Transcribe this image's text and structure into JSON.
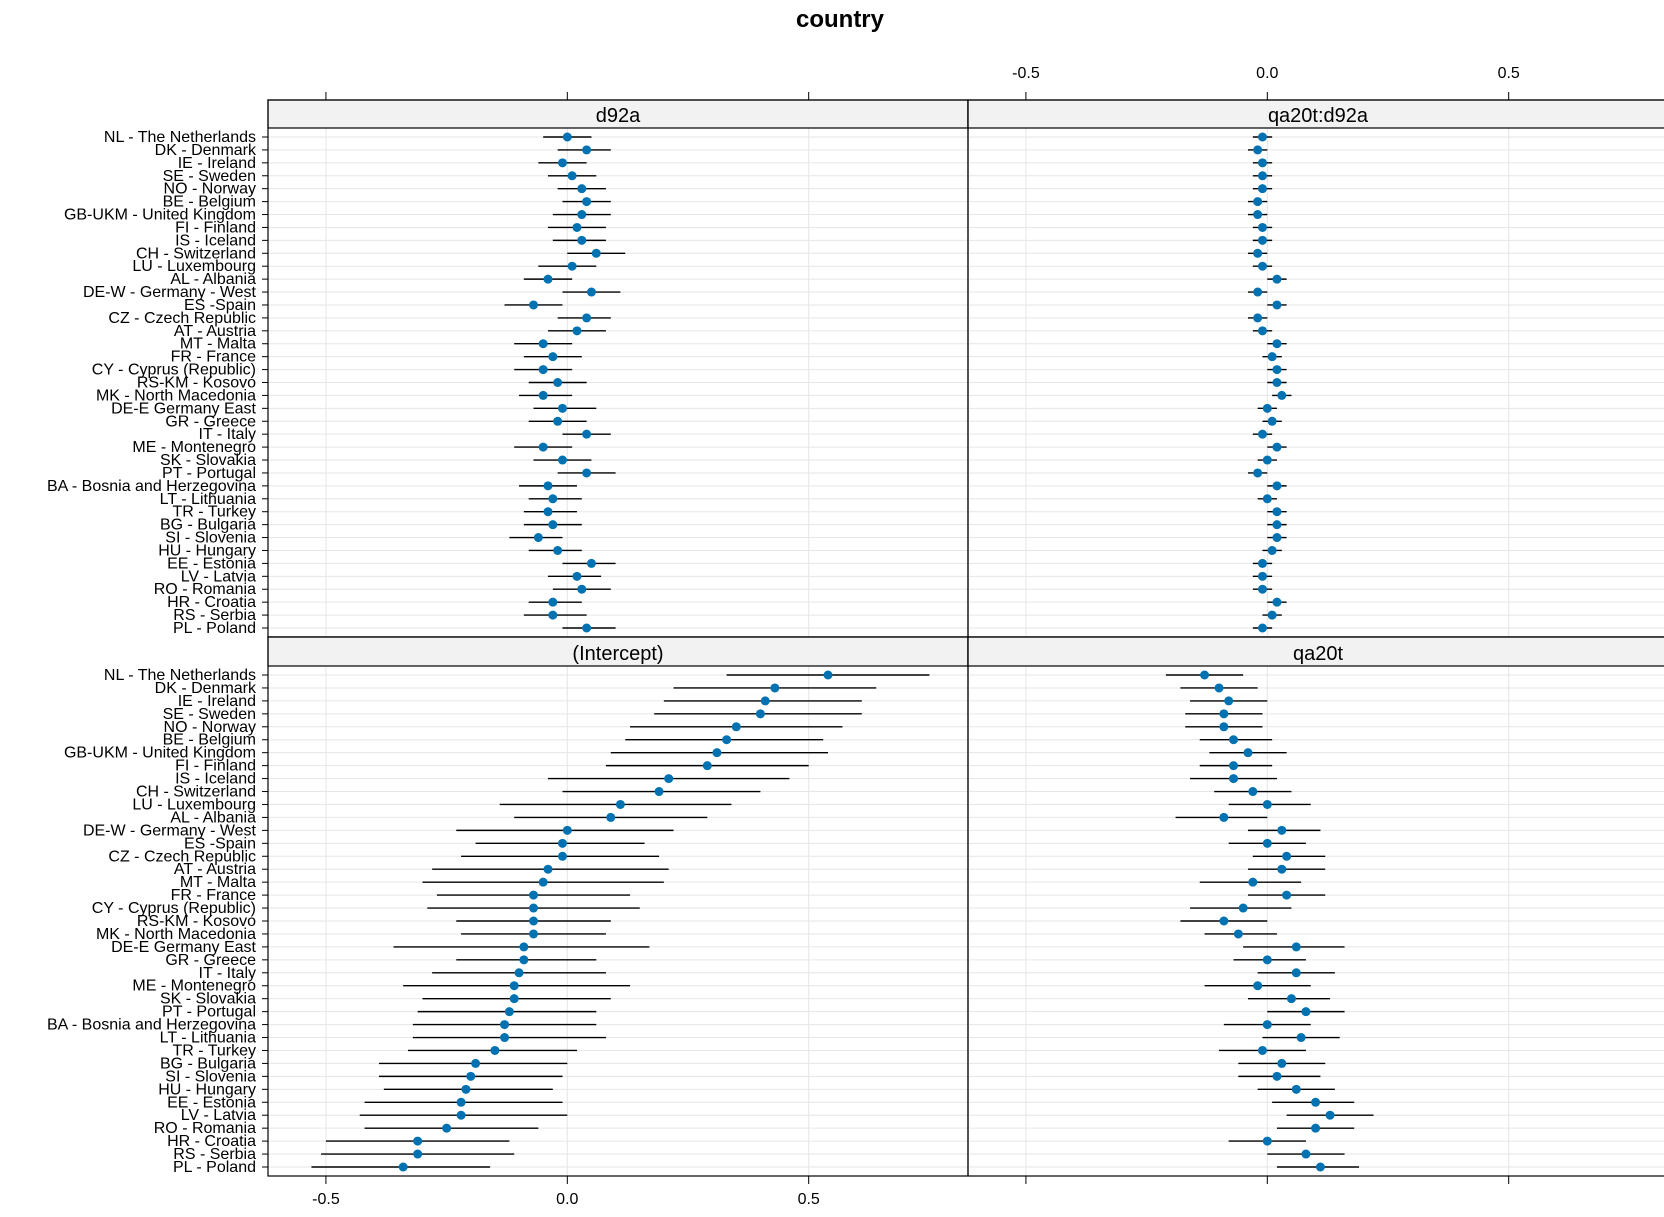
{
  "chart_data": {
    "type": "dotplot",
    "title": "country",
    "xlim": [
      -0.62,
      0.83
    ],
    "xticks": [
      -0.5,
      0.0,
      0.5
    ],
    "xtick_labels": [
      "-0.5",
      "0.0",
      "0.5"
    ],
    "grid": true,
    "point_color": "#0072B2",
    "countries": [
      "NL - The Netherlands",
      "DK - Denmark",
      "IE - Ireland",
      "SE - Sweden",
      "NO - Norway",
      "BE - Belgium",
      "GB-UKM - United Kingdom",
      "FI - Finland",
      "IS - Iceland",
      "CH - Switzerland",
      "LU - Luxembourg",
      "AL - Albania",
      "DE-W - Germany - West",
      "ES -Spain",
      "CZ - Czech Republic",
      "AT - Austria",
      "MT - Malta",
      "FR - France",
      "CY - Cyprus (Republic)",
      "RS-KM - Kosovo",
      "MK - North Macedonia",
      "DE-E Germany East",
      "GR - Greece",
      "IT - Italy",
      "ME - Montenegro",
      "SK - Slovakia",
      "PT - Portugal",
      "BA - Bosnia and Herzegovina",
      "LT - Lithuania",
      "TR - Turkey",
      "BG - Bulgaria",
      "SI - Slovenia",
      "HU - Hungary",
      "EE - Estonia",
      "LV - Latvia",
      "RO - Romania",
      "HR - Croatia",
      "RS - Serbia",
      "PL - Poland"
    ],
    "panels": [
      {
        "name": "d92a",
        "position": "top-left",
        "values": [
          0.0,
          0.04,
          -0.01,
          0.01,
          0.03,
          0.04,
          0.03,
          0.02,
          0.03,
          0.06,
          0.01,
          -0.04,
          0.05,
          -0.07,
          0.04,
          0.02,
          -0.05,
          -0.03,
          -0.05,
          -0.02,
          -0.05,
          -0.01,
          -0.02,
          0.04,
          -0.05,
          -0.01,
          0.04,
          -0.04,
          -0.03,
          -0.04,
          -0.03,
          -0.06,
          -0.02,
          0.05,
          0.02,
          0.03,
          -0.03,
          -0.03,
          0.04
        ],
        "lower": [
          -0.05,
          -0.02,
          -0.06,
          -0.04,
          -0.02,
          -0.01,
          -0.03,
          -0.04,
          -0.03,
          0.0,
          -0.06,
          -0.09,
          -0.01,
          -0.13,
          -0.02,
          -0.04,
          -0.11,
          -0.09,
          -0.11,
          -0.08,
          -0.1,
          -0.07,
          -0.08,
          -0.01,
          -0.11,
          -0.07,
          -0.02,
          -0.1,
          -0.08,
          -0.09,
          -0.09,
          -0.12,
          -0.08,
          -0.01,
          -0.04,
          -0.03,
          -0.08,
          -0.09,
          -0.01
        ],
        "upper": [
          0.05,
          0.09,
          0.04,
          0.06,
          0.08,
          0.09,
          0.09,
          0.08,
          0.08,
          0.12,
          0.06,
          0.01,
          0.11,
          -0.01,
          0.09,
          0.08,
          0.01,
          0.03,
          0.01,
          0.04,
          0.01,
          0.06,
          0.04,
          0.09,
          0.01,
          0.05,
          0.1,
          0.02,
          0.03,
          0.02,
          0.03,
          -0.01,
          0.03,
          0.1,
          0.07,
          0.09,
          0.03,
          0.04,
          0.1
        ]
      },
      {
        "name": "qa20t:d92a",
        "position": "top-right",
        "values": [
          -0.01,
          -0.02,
          -0.01,
          -0.01,
          -0.01,
          -0.02,
          -0.02,
          -0.01,
          -0.01,
          -0.02,
          -0.01,
          0.02,
          -0.02,
          0.02,
          -0.02,
          -0.01,
          0.02,
          0.01,
          0.02,
          0.02,
          0.03,
          0.0,
          0.01,
          -0.01,
          0.02,
          0.0,
          -0.02,
          0.02,
          0.0,
          0.02,
          0.02,
          0.02,
          0.01,
          -0.01,
          -0.01,
          -0.01,
          0.02,
          0.01,
          -0.01
        ],
        "lower": [
          -0.03,
          -0.04,
          -0.03,
          -0.03,
          -0.03,
          -0.04,
          -0.04,
          -0.03,
          -0.03,
          -0.04,
          -0.03,
          0.0,
          -0.04,
          0.0,
          -0.04,
          -0.03,
          0.0,
          -0.01,
          0.0,
          0.0,
          0.01,
          -0.02,
          -0.01,
          -0.03,
          0.0,
          -0.02,
          -0.04,
          0.0,
          -0.02,
          0.0,
          0.0,
          0.0,
          -0.01,
          -0.03,
          -0.03,
          -0.03,
          0.0,
          -0.01,
          -0.03
        ],
        "upper": [
          0.01,
          0.0,
          0.01,
          0.01,
          0.01,
          0.0,
          0.0,
          0.01,
          0.01,
          0.0,
          0.01,
          0.04,
          0.0,
          0.04,
          0.0,
          0.01,
          0.04,
          0.03,
          0.04,
          0.04,
          0.05,
          0.02,
          0.03,
          0.01,
          0.04,
          0.02,
          0.0,
          0.04,
          0.02,
          0.04,
          0.04,
          0.04,
          0.03,
          0.01,
          0.01,
          0.01,
          0.04,
          0.03,
          0.01
        ]
      },
      {
        "name": "(Intercept)",
        "position": "bottom-left",
        "values": [
          0.54,
          0.43,
          0.41,
          0.4,
          0.35,
          0.33,
          0.31,
          0.29,
          0.21,
          0.19,
          0.11,
          0.09,
          0.0,
          -0.01,
          -0.01,
          -0.04,
          -0.05,
          -0.07,
          -0.07,
          -0.07,
          -0.07,
          -0.09,
          -0.09,
          -0.1,
          -0.11,
          -0.11,
          -0.12,
          -0.13,
          -0.13,
          -0.15,
          -0.19,
          -0.2,
          -0.21,
          -0.22,
          -0.22,
          -0.25,
          -0.31,
          -0.31,
          -0.34
        ],
        "lower": [
          0.33,
          0.22,
          0.2,
          0.18,
          0.13,
          0.12,
          0.09,
          0.08,
          -0.04,
          -0.01,
          -0.14,
          -0.11,
          -0.23,
          -0.19,
          -0.22,
          -0.28,
          -0.3,
          -0.27,
          -0.29,
          -0.23,
          -0.22,
          -0.36,
          -0.23,
          -0.28,
          -0.34,
          -0.3,
          -0.31,
          -0.32,
          -0.32,
          -0.33,
          -0.39,
          -0.39,
          -0.38,
          -0.42,
          -0.43,
          -0.42,
          -0.5,
          -0.51,
          -0.53
        ],
        "upper": [
          0.75,
          0.64,
          0.61,
          0.61,
          0.57,
          0.53,
          0.54,
          0.5,
          0.46,
          0.4,
          0.34,
          0.29,
          0.22,
          0.16,
          0.19,
          0.21,
          0.2,
          0.13,
          0.15,
          0.09,
          0.08,
          0.17,
          0.06,
          0.08,
          0.13,
          0.09,
          0.06,
          0.06,
          0.08,
          0.02,
          0.0,
          -0.01,
          -0.03,
          -0.01,
          0.0,
          -0.06,
          -0.12,
          -0.11,
          -0.16
        ]
      },
      {
        "name": "qa20t",
        "position": "bottom-right",
        "values": [
          -0.13,
          -0.1,
          -0.08,
          -0.09,
          -0.09,
          -0.07,
          -0.04,
          -0.07,
          -0.07,
          -0.03,
          0.0,
          -0.09,
          0.03,
          0.0,
          0.04,
          0.03,
          -0.03,
          0.04,
          -0.05,
          -0.09,
          -0.06,
          0.06,
          0.0,
          0.06,
          -0.02,
          0.05,
          0.08,
          0.0,
          0.07,
          -0.01,
          0.03,
          0.02,
          0.06,
          0.1,
          0.13,
          0.1,
          0.0,
          0.08,
          0.11
        ],
        "lower": [
          -0.21,
          -0.18,
          -0.16,
          -0.17,
          -0.17,
          -0.14,
          -0.12,
          -0.14,
          -0.16,
          -0.11,
          -0.08,
          -0.19,
          -0.04,
          -0.08,
          -0.03,
          -0.04,
          -0.14,
          -0.04,
          -0.16,
          -0.18,
          -0.13,
          -0.05,
          -0.07,
          -0.02,
          -0.13,
          -0.04,
          0.0,
          -0.09,
          -0.01,
          -0.1,
          -0.06,
          -0.06,
          -0.02,
          0.01,
          0.04,
          0.02,
          -0.08,
          0.0,
          0.02
        ],
        "upper": [
          -0.05,
          -0.02,
          0.0,
          -0.01,
          -0.01,
          0.01,
          0.04,
          0.01,
          0.02,
          0.05,
          0.09,
          0.0,
          0.11,
          0.08,
          0.12,
          0.12,
          0.07,
          0.12,
          0.05,
          0.0,
          0.02,
          0.16,
          0.08,
          0.14,
          0.09,
          0.13,
          0.16,
          0.09,
          0.15,
          0.08,
          0.12,
          0.11,
          0.14,
          0.18,
          0.22,
          0.18,
          0.08,
          0.16,
          0.19
        ]
      }
    ]
  }
}
